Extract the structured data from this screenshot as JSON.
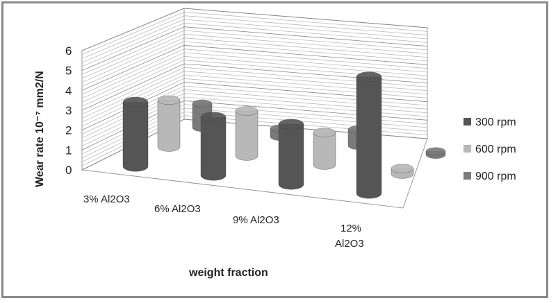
{
  "chart_data": {
    "type": "bar",
    "style": "3d-cylinder",
    "title": "",
    "xlabel": "weight fraction",
    "ylabel": "Wear rate  10⁻⁷ mm2/N",
    "ylim": [
      0,
      6
    ],
    "yticks": [
      "0",
      "1",
      "2",
      "3",
      "4",
      "5",
      "6"
    ],
    "categories": [
      "3%  Al2O3",
      "6%  Al2O3",
      "9%  Al2O3",
      "12% Al2O3"
    ],
    "series": [
      {
        "name": "300 rpm",
        "color": "#555555",
        "values": [
          3.2,
          2.9,
          3.0,
          5.8
        ]
      },
      {
        "name": "600 rpm",
        "color": "#b8b8b8",
        "values": [
          2.6,
          2.5,
          1.8,
          0.3
        ]
      },
      {
        "name": "900 rpm",
        "color": "#7a7a7a",
        "values": [
          1.5,
          0.5,
          1.0,
          0.2
        ]
      }
    ],
    "legend": "right",
    "grid": true
  }
}
